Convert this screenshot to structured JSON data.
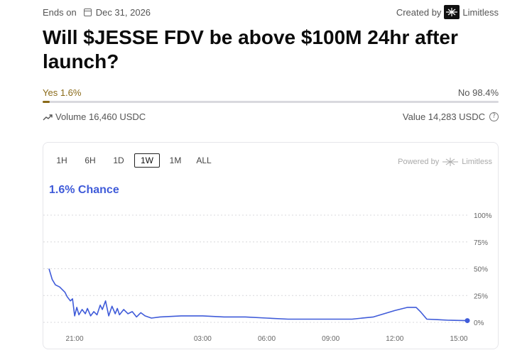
{
  "header": {
    "ends_label": "Ends on",
    "end_date": "Dec 31, 2026",
    "created_by_label": "Created by",
    "creator_name": "Limitless"
  },
  "market": {
    "title": "Will $JESSE FDV be above $100M 24hr after launch?",
    "yes_label": "Yes 1.6%",
    "no_label": "No 98.4%",
    "yes_fraction": 0.016,
    "volume_label": "Volume 16,460 USDC",
    "value_label": "Value 14,283 USDC"
  },
  "chart_panel": {
    "ranges": [
      "1H",
      "6H",
      "1D",
      "1W",
      "1M",
      "ALL"
    ],
    "active_range": "1W",
    "powered_by_label": "Powered by",
    "powered_brand": "Limitless",
    "chance_label": "1.6% Chance"
  },
  "colors": {
    "accent": "#3f5bd9",
    "yes": "#8a6a18",
    "track": "#d9d9de"
  },
  "chart_data": {
    "type": "line",
    "x_ticks": [
      "21:00",
      "03:00",
      "06:00",
      "09:00",
      "12:00",
      "15:00"
    ],
    "y_ticks": [
      "100%",
      "75%",
      "50%",
      "25%",
      "0%"
    ],
    "ylim": [
      0,
      100
    ],
    "xlim": [
      19.8,
      39.4
    ],
    "grid": true,
    "series": [
      {
        "x": [
          19.8,
          19.95,
          20.1,
          20.3,
          20.45,
          20.55,
          20.65,
          20.8,
          20.9,
          21.0,
          21.1,
          21.2,
          21.35,
          21.5,
          21.6,
          21.75,
          21.9,
          22.05,
          22.2,
          22.3,
          22.45,
          22.6,
          22.75,
          22.9,
          23.0,
          23.1,
          23.3,
          23.5,
          23.7,
          23.9,
          24.1,
          24.3,
          24.6,
          25.0,
          26.0,
          27.0,
          28.0,
          29.0,
          30.0,
          31.0,
          32.0,
          33.0,
          34.0,
          35.0,
          35.5,
          36.0,
          36.6,
          37.0,
          37.2,
          37.5,
          38.0,
          38.5,
          39.0,
          39.4
        ],
        "values": [
          50,
          40,
          35,
          33,
          30,
          28,
          24,
          20,
          22,
          6,
          14,
          7,
          12,
          8,
          13,
          6,
          10,
          7,
          16,
          12,
          20,
          6,
          15,
          8,
          13,
          7,
          12,
          8,
          10,
          5,
          9,
          6,
          4,
          5,
          6,
          6,
          5,
          5,
          4,
          3,
          3,
          3,
          3,
          5,
          8,
          11,
          14,
          14,
          10,
          3,
          2.5,
          2,
          1.8,
          1.6
        ]
      }
    ]
  }
}
